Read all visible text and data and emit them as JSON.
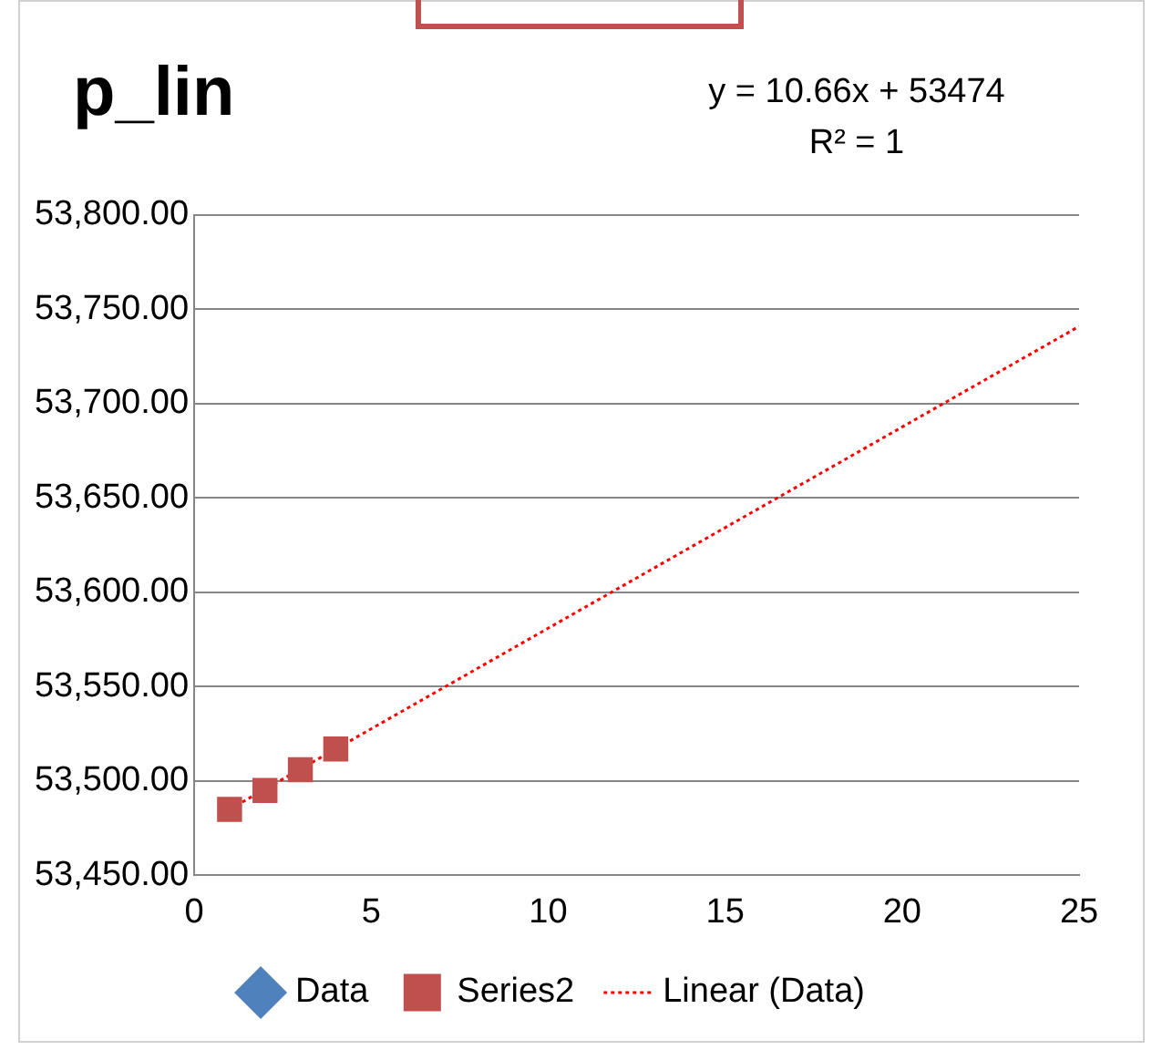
{
  "chart_data": {
    "type": "scatter",
    "title": "p_lin",
    "annotations": [
      "y = 10.66x + 53474",
      "R² = 1"
    ],
    "series": [
      {
        "name": "Data",
        "color": "#4f81bd",
        "marker": "diamond",
        "values": [
          null,
          null,
          null,
          null
        ]
      },
      {
        "name": "Series2",
        "color": "#c0504d",
        "marker": "square",
        "x": [
          1,
          2,
          3,
          4
        ],
        "values": [
          53485,
          53495,
          53506,
          53517
        ]
      },
      {
        "name": "Linear (Data)",
        "type": "line",
        "color": "#ff0000",
        "line_style": "dotted",
        "marker": "none",
        "x": [
          1,
          25
        ],
        "values": [
          53485,
          53741
        ]
      }
    ],
    "xlim": [
      0,
      25
    ],
    "xticks": [
      0,
      5,
      10,
      15,
      20,
      25
    ],
    "ylim": [
      53450,
      53800
    ],
    "yticks": [
      {
        "value": 53450,
        "label": "53,450.00"
      },
      {
        "value": 53500,
        "label": "53,500.00"
      },
      {
        "value": 53550,
        "label": "53,550.00"
      },
      {
        "value": 53600,
        "label": "53,600.00"
      },
      {
        "value": 53650,
        "label": "53,650.00"
      },
      {
        "value": 53700,
        "label": "53,700.00"
      },
      {
        "value": 53750,
        "label": "53,750.00"
      },
      {
        "value": 53800,
        "label": "53,800.00"
      }
    ],
    "grid": "y",
    "legend": "bottom"
  }
}
